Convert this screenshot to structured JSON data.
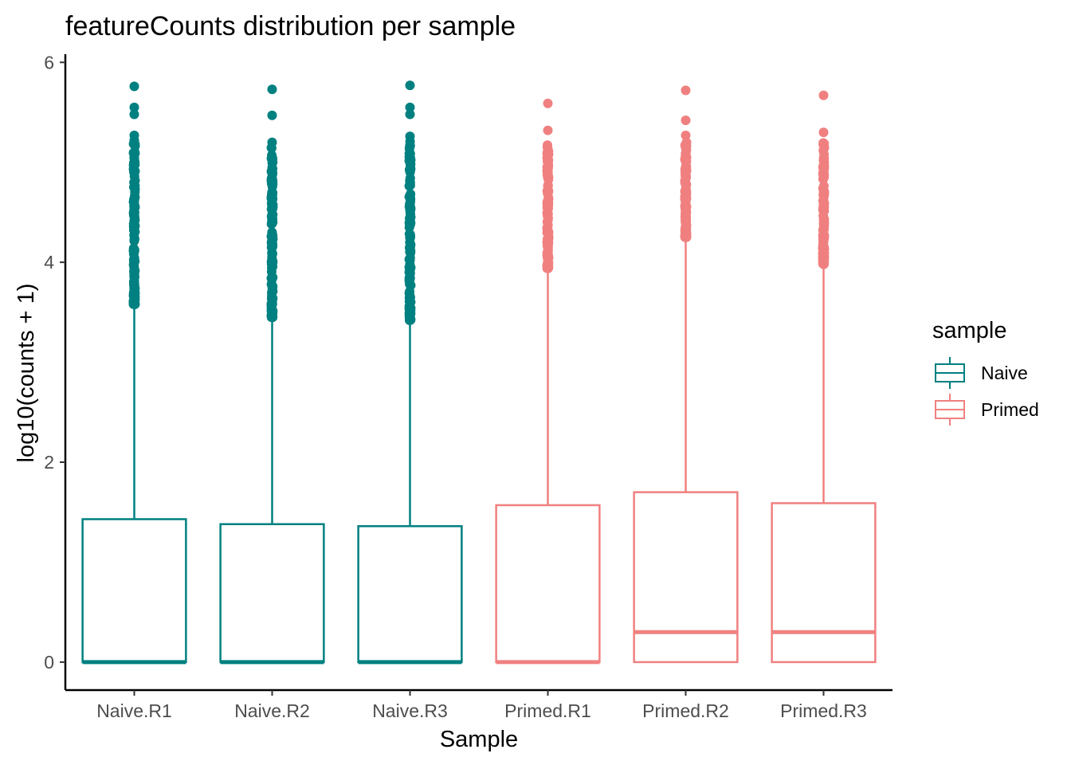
{
  "chart_data": {
    "type": "boxplot",
    "title": "featureCounts distribution per sample",
    "xlabel": "Sample",
    "ylabel": "log10(counts + 1)",
    "ylim": [
      -0.28,
      6.05
    ],
    "yticks": [
      0,
      2,
      4,
      6
    ],
    "grid": false,
    "legend": {
      "title": "sample",
      "placement": "right",
      "entries": [
        {
          "name": "Naive",
          "color": "#008080"
        },
        {
          "name": "Primed",
          "color": "#F08080"
        }
      ]
    },
    "categories": [
      "Naive.R1",
      "Naive.R2",
      "Naive.R3",
      "Primed.R1",
      "Primed.R2",
      "Primed.R3"
    ],
    "boxes": [
      {
        "sample": "Naive.R1",
        "group": "Naive",
        "min": 0,
        "q1": 0,
        "median": 0,
        "q3": 1.43,
        "whisker_high": 3.58,
        "outlier_band": [
          3.58,
          5.2
        ],
        "outliers": [
          5.22,
          5.27,
          5.48,
          5.55,
          5.76
        ]
      },
      {
        "sample": "Naive.R2",
        "group": "Naive",
        "min": 0,
        "q1": 0,
        "median": 0,
        "q3": 1.38,
        "whisker_high": 3.45,
        "outlier_band": [
          3.45,
          5.16
        ],
        "outliers": [
          5.2,
          5.47,
          5.73
        ]
      },
      {
        "sample": "Naive.R3",
        "group": "Naive",
        "min": 0,
        "q1": 0,
        "median": 0,
        "q3": 1.36,
        "whisker_high": 3.42,
        "outlier_band": [
          3.42,
          5.22
        ],
        "outliers": [
          5.26,
          5.48,
          5.55,
          5.77
        ]
      },
      {
        "sample": "Primed.R1",
        "group": "Primed",
        "min": 0,
        "q1": 0,
        "median": 0,
        "q3": 1.57,
        "whisker_high": 3.94,
        "outlier_band": [
          3.94,
          5.19
        ],
        "outliers": [
          5.32,
          5.59
        ]
      },
      {
        "sample": "Primed.R2",
        "group": "Primed",
        "min": 0,
        "q1": 0,
        "median": 0.3,
        "q3": 1.7,
        "whisker_high": 4.25,
        "outlier_band": [
          4.25,
          5.2
        ],
        "outliers": [
          5.27,
          5.42,
          5.72
        ]
      },
      {
        "sample": "Primed.R3",
        "group": "Primed",
        "min": 0,
        "q1": 0,
        "median": 0.3,
        "q3": 1.59,
        "whisker_high": 3.98,
        "outlier_band": [
          3.98,
          5.23
        ],
        "outliers": [
          5.3,
          5.67
        ]
      }
    ]
  }
}
